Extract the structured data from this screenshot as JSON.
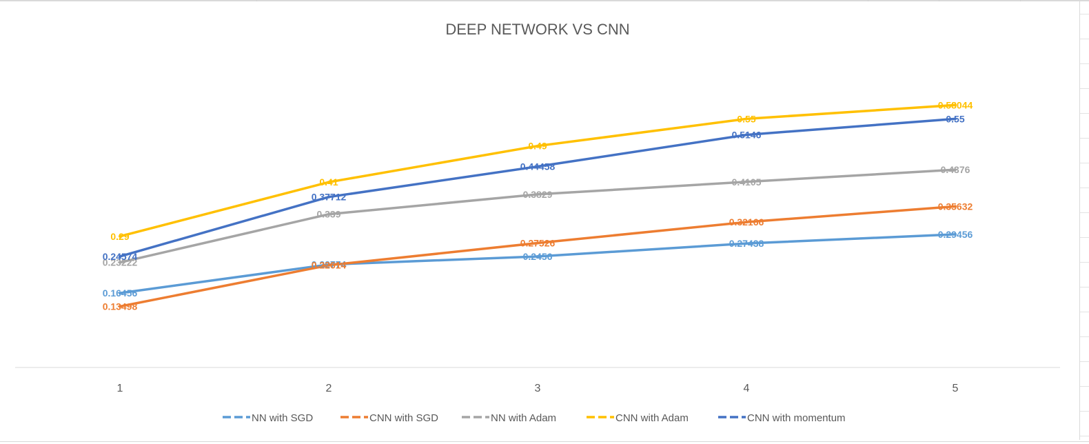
{
  "chart_data": {
    "type": "line",
    "title": "DEEP NETWORK VS CNN",
    "x": [
      "1",
      "2",
      "3",
      "4",
      "5"
    ],
    "ylim": [
      0,
      0.7
    ],
    "grid": false,
    "legend": "bottom",
    "series": [
      {
        "name": "NN with SGD",
        "color": "#5b9bd5",
        "values": [
          0.16456,
          0.22774,
          0.2456,
          0.27438,
          0.29456
        ],
        "labels": [
          "0.16456",
          "0.22774",
          "0.2456",
          "0.27438",
          "0.29456"
        ]
      },
      {
        "name": "CNN with SGD",
        "color": "#ed7d31",
        "values": [
          0.13498,
          0.22614,
          0.27526,
          0.32166,
          0.35632
        ],
        "labels": [
          "0.13498",
          "0.22614",
          "0.27526",
          "0.32166",
          "0.35632"
        ]
      },
      {
        "name": "NN with Adam",
        "color": "#a5a5a5",
        "values": [
          0.23222,
          0.339,
          0.3829,
          0.4105,
          0.4376
        ],
        "labels": [
          "0.23222",
          "0.339",
          "0.3829",
          "0.4105",
          "0.4376"
        ]
      },
      {
        "name": "CNN with Adam",
        "color": "#ffc000",
        "values": [
          0.29,
          0.41,
          0.49,
          0.55,
          0.58044
        ],
        "labels": [
          "0.29",
          "0.41",
          "0.49",
          "0.55",
          "0.58044"
        ]
      },
      {
        "name": "CNN with momentum",
        "color": "#4472c4",
        "values": [
          0.24574,
          0.37712,
          0.44458,
          0.5146,
          0.55
        ],
        "labels": [
          "0.24574",
          "0.37712",
          "0.44458",
          "0.5146",
          "0.55"
        ]
      }
    ]
  }
}
